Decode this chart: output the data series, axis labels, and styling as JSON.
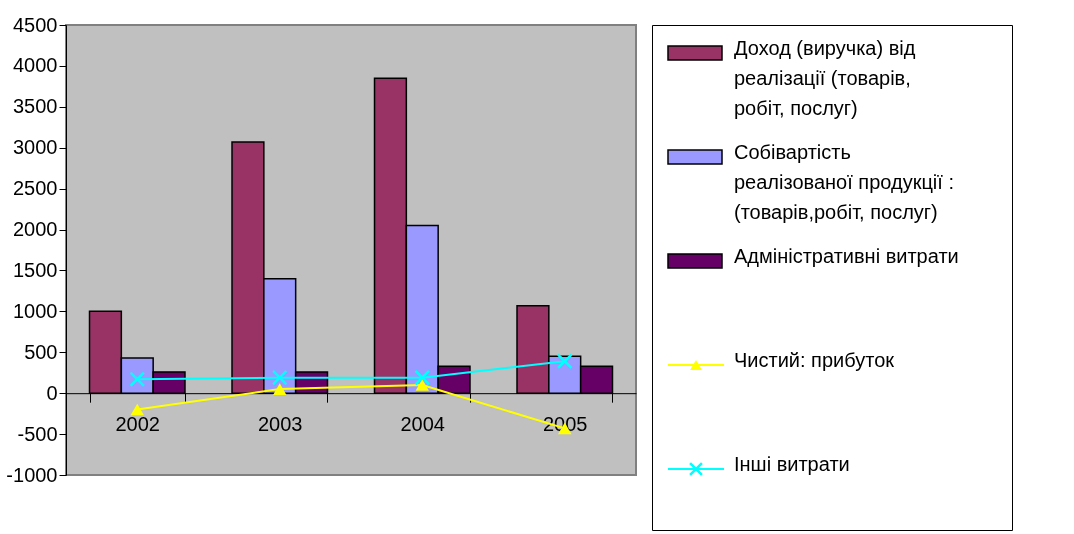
{
  "chart_data": {
    "type": "bar",
    "categories": [
      "2002",
      "2003",
      "2004",
      "2005"
    ],
    "series": [
      {
        "name": "Доход (виручка) від реалізації (товарів, робіт, послуг)",
        "color": "#993366",
        "values": [
          1000,
          3070,
          3850,
          1070
        ]
      },
      {
        "name": "Собівартість реалізованої продукції : (товарів,робіт, послуг)",
        "color": "#9999ff",
        "values": [
          430,
          1400,
          2050,
          450
        ]
      },
      {
        "name": "Адміністративні витрати",
        "color": "#660066",
        "values": [
          260,
          260,
          330,
          330
        ]
      },
      {
        "name": "Чистий: прибуток",
        "type": "line",
        "marker": "triangle",
        "color": "#ffff00",
        "values": [
          -200,
          50,
          100,
          -430
        ]
      },
      {
        "name": "Інші витрати",
        "type": "line",
        "marker": "cross",
        "color": "#00ffff",
        "values": [
          170,
          190,
          190,
          390
        ]
      }
    ],
    "ylim": [
      -1000,
      4500
    ],
    "yticks": [
      -1000,
      -500,
      0,
      500,
      1000,
      1500,
      2000,
      2500,
      3000,
      3500,
      4000,
      4500
    ],
    "grid": false,
    "legend": "right"
  }
}
